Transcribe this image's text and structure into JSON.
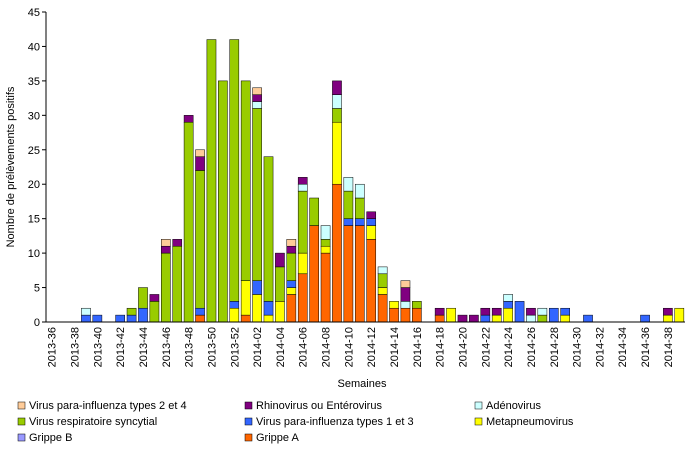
{
  "chart_data": {
    "type": "stacked_bar",
    "x_label": "Semaines",
    "y_label": "Nombre de prélèvements positifs",
    "categories": [
      "2013-36",
      null,
      "2013-38",
      null,
      "2013-40",
      null,
      "2013-42",
      null,
      "2013-44",
      null,
      "2013-46",
      null,
      "2013-48",
      null,
      "2013-50",
      null,
      "2013-52",
      null,
      "2014-02",
      null,
      "2014-04",
      null,
      "2014-06",
      null,
      "2014-08",
      null,
      "2014-10",
      null,
      "2014-12",
      null,
      "2014-14",
      null,
      "2014-16",
      null,
      "2014-18",
      null,
      "2014-20",
      null,
      "2014-22",
      null,
      "2014-24",
      null,
      "2014-26",
      null,
      "2014-28",
      null,
      "2014-30",
      null,
      "2014-32",
      null,
      "2014-34",
      null,
      "2014-36",
      null,
      "2014-38",
      null
    ],
    "ylim": [
      0,
      45
    ],
    "yticks": [
      0,
      5,
      10,
      15,
      20,
      25,
      30,
      35,
      40,
      45
    ],
    "series": [
      {
        "name": "Grippe A",
        "color": "#ff6600",
        "values": [
          0,
          0,
          0,
          0,
          0,
          0,
          0,
          0,
          0,
          0,
          0,
          0,
          0,
          1,
          0,
          0,
          0,
          1,
          0,
          0,
          0,
          4,
          7,
          14,
          10,
          20,
          14,
          14,
          12,
          4,
          2,
          2,
          2,
          0,
          1,
          0,
          0,
          0,
          0,
          0,
          0,
          0,
          0,
          0,
          0,
          0,
          0,
          0,
          0,
          0,
          0,
          0,
          0,
          0,
          0,
          0
        ]
      },
      {
        "name": "Grippe B",
        "color": "#9999ff",
        "values": [
          0,
          0,
          0,
          0,
          0,
          0,
          0,
          0,
          0,
          0,
          0,
          0,
          0,
          0,
          0,
          0,
          0,
          0,
          0,
          0,
          0,
          0,
          0,
          0,
          0,
          0,
          0,
          0,
          0,
          0,
          0,
          0,
          0,
          0,
          0,
          0,
          0,
          0,
          0,
          0,
          0,
          0,
          0,
          0,
          0,
          0,
          0,
          0,
          0,
          0,
          0,
          0,
          0,
          0,
          0,
          0
        ]
      },
      {
        "name": "Metapneumovirus",
        "color": "#ffff00",
        "values": [
          0,
          0,
          0,
          0,
          0,
          0,
          0,
          0,
          0,
          0,
          0,
          0,
          0,
          0,
          0,
          0,
          2,
          5,
          4,
          1,
          3,
          1,
          3,
          0,
          1,
          9,
          0,
          0,
          2,
          1,
          1,
          0,
          0,
          0,
          0,
          2,
          0,
          0,
          0,
          1,
          2,
          0,
          0,
          0,
          0,
          1,
          0,
          0,
          0,
          0,
          0,
          0,
          0,
          0,
          1,
          2
        ]
      },
      {
        "name": "Virus para-influenza types 1 et 3",
        "color": "#3366ff",
        "values": [
          0,
          0,
          0,
          1,
          1,
          0,
          1,
          1,
          2,
          0,
          0,
          0,
          0,
          1,
          0,
          0,
          1,
          0,
          2,
          2,
          0,
          1,
          0,
          0,
          0,
          0,
          1,
          1,
          1,
          0,
          0,
          0,
          0,
          0,
          0,
          0,
          0,
          0,
          1,
          0,
          1,
          3,
          0,
          0,
          2,
          1,
          0,
          1,
          0,
          0,
          0,
          0,
          1,
          0,
          0,
          0
        ]
      },
      {
        "name": "Virus respiratoire syncytial",
        "color": "#99cc00",
        "values": [
          0,
          0,
          0,
          0,
          0,
          0,
          0,
          1,
          3,
          3,
          10,
          11,
          29,
          20,
          41,
          35,
          38,
          29,
          25,
          21,
          5,
          4,
          9,
          4,
          1,
          2,
          4,
          3,
          0,
          2,
          0,
          0,
          1,
          0,
          0,
          0,
          0,
          0,
          0,
          0,
          0,
          0,
          0,
          1,
          0,
          0,
          0,
          0,
          0,
          0,
          0,
          0,
          0,
          0,
          0,
          0
        ]
      },
      {
        "name": "Adénovirus",
        "color": "#ccffff",
        "values": [
          0,
          0,
          0,
          1,
          0,
          0,
          0,
          0,
          0,
          0,
          0,
          0,
          0,
          0,
          0,
          0,
          0,
          0,
          1,
          0,
          0,
          0,
          1,
          0,
          2,
          2,
          2,
          2,
          0,
          1,
          0,
          1,
          0,
          0,
          0,
          0,
          0,
          0,
          0,
          0,
          1,
          0,
          1,
          1,
          0,
          0,
          0,
          0,
          0,
          0,
          0,
          0,
          0,
          0,
          0,
          0
        ]
      },
      {
        "name": "Rhinovirus ou Entérovirus",
        "color": "#800080",
        "values": [
          0,
          0,
          0,
          0,
          0,
          0,
          0,
          0,
          0,
          1,
          1,
          1,
          1,
          2,
          0,
          0,
          0,
          0,
          1,
          0,
          2,
          1,
          1,
          0,
          0,
          2,
          0,
          0,
          1,
          0,
          0,
          2,
          0,
          0,
          1,
          0,
          1,
          1,
          1,
          1,
          0,
          0,
          1,
          0,
          0,
          0,
          0,
          0,
          0,
          0,
          0,
          0,
          0,
          0,
          1,
          0
        ]
      },
      {
        "name": "Virus para-influenza types 2 et 4",
        "color": "#ffcc99",
        "values": [
          0,
          0,
          0,
          0,
          0,
          0,
          0,
          0,
          0,
          0,
          1,
          0,
          0,
          1,
          0,
          0,
          0,
          0,
          1,
          0,
          0,
          1,
          0,
          0,
          0,
          0,
          0,
          0,
          0,
          0,
          0,
          1,
          0,
          0,
          0,
          0,
          0,
          0,
          0,
          0,
          0,
          0,
          0,
          0,
          0,
          0,
          0,
          0,
          0,
          0,
          0,
          0,
          0,
          0,
          0,
          0
        ]
      }
    ]
  }
}
